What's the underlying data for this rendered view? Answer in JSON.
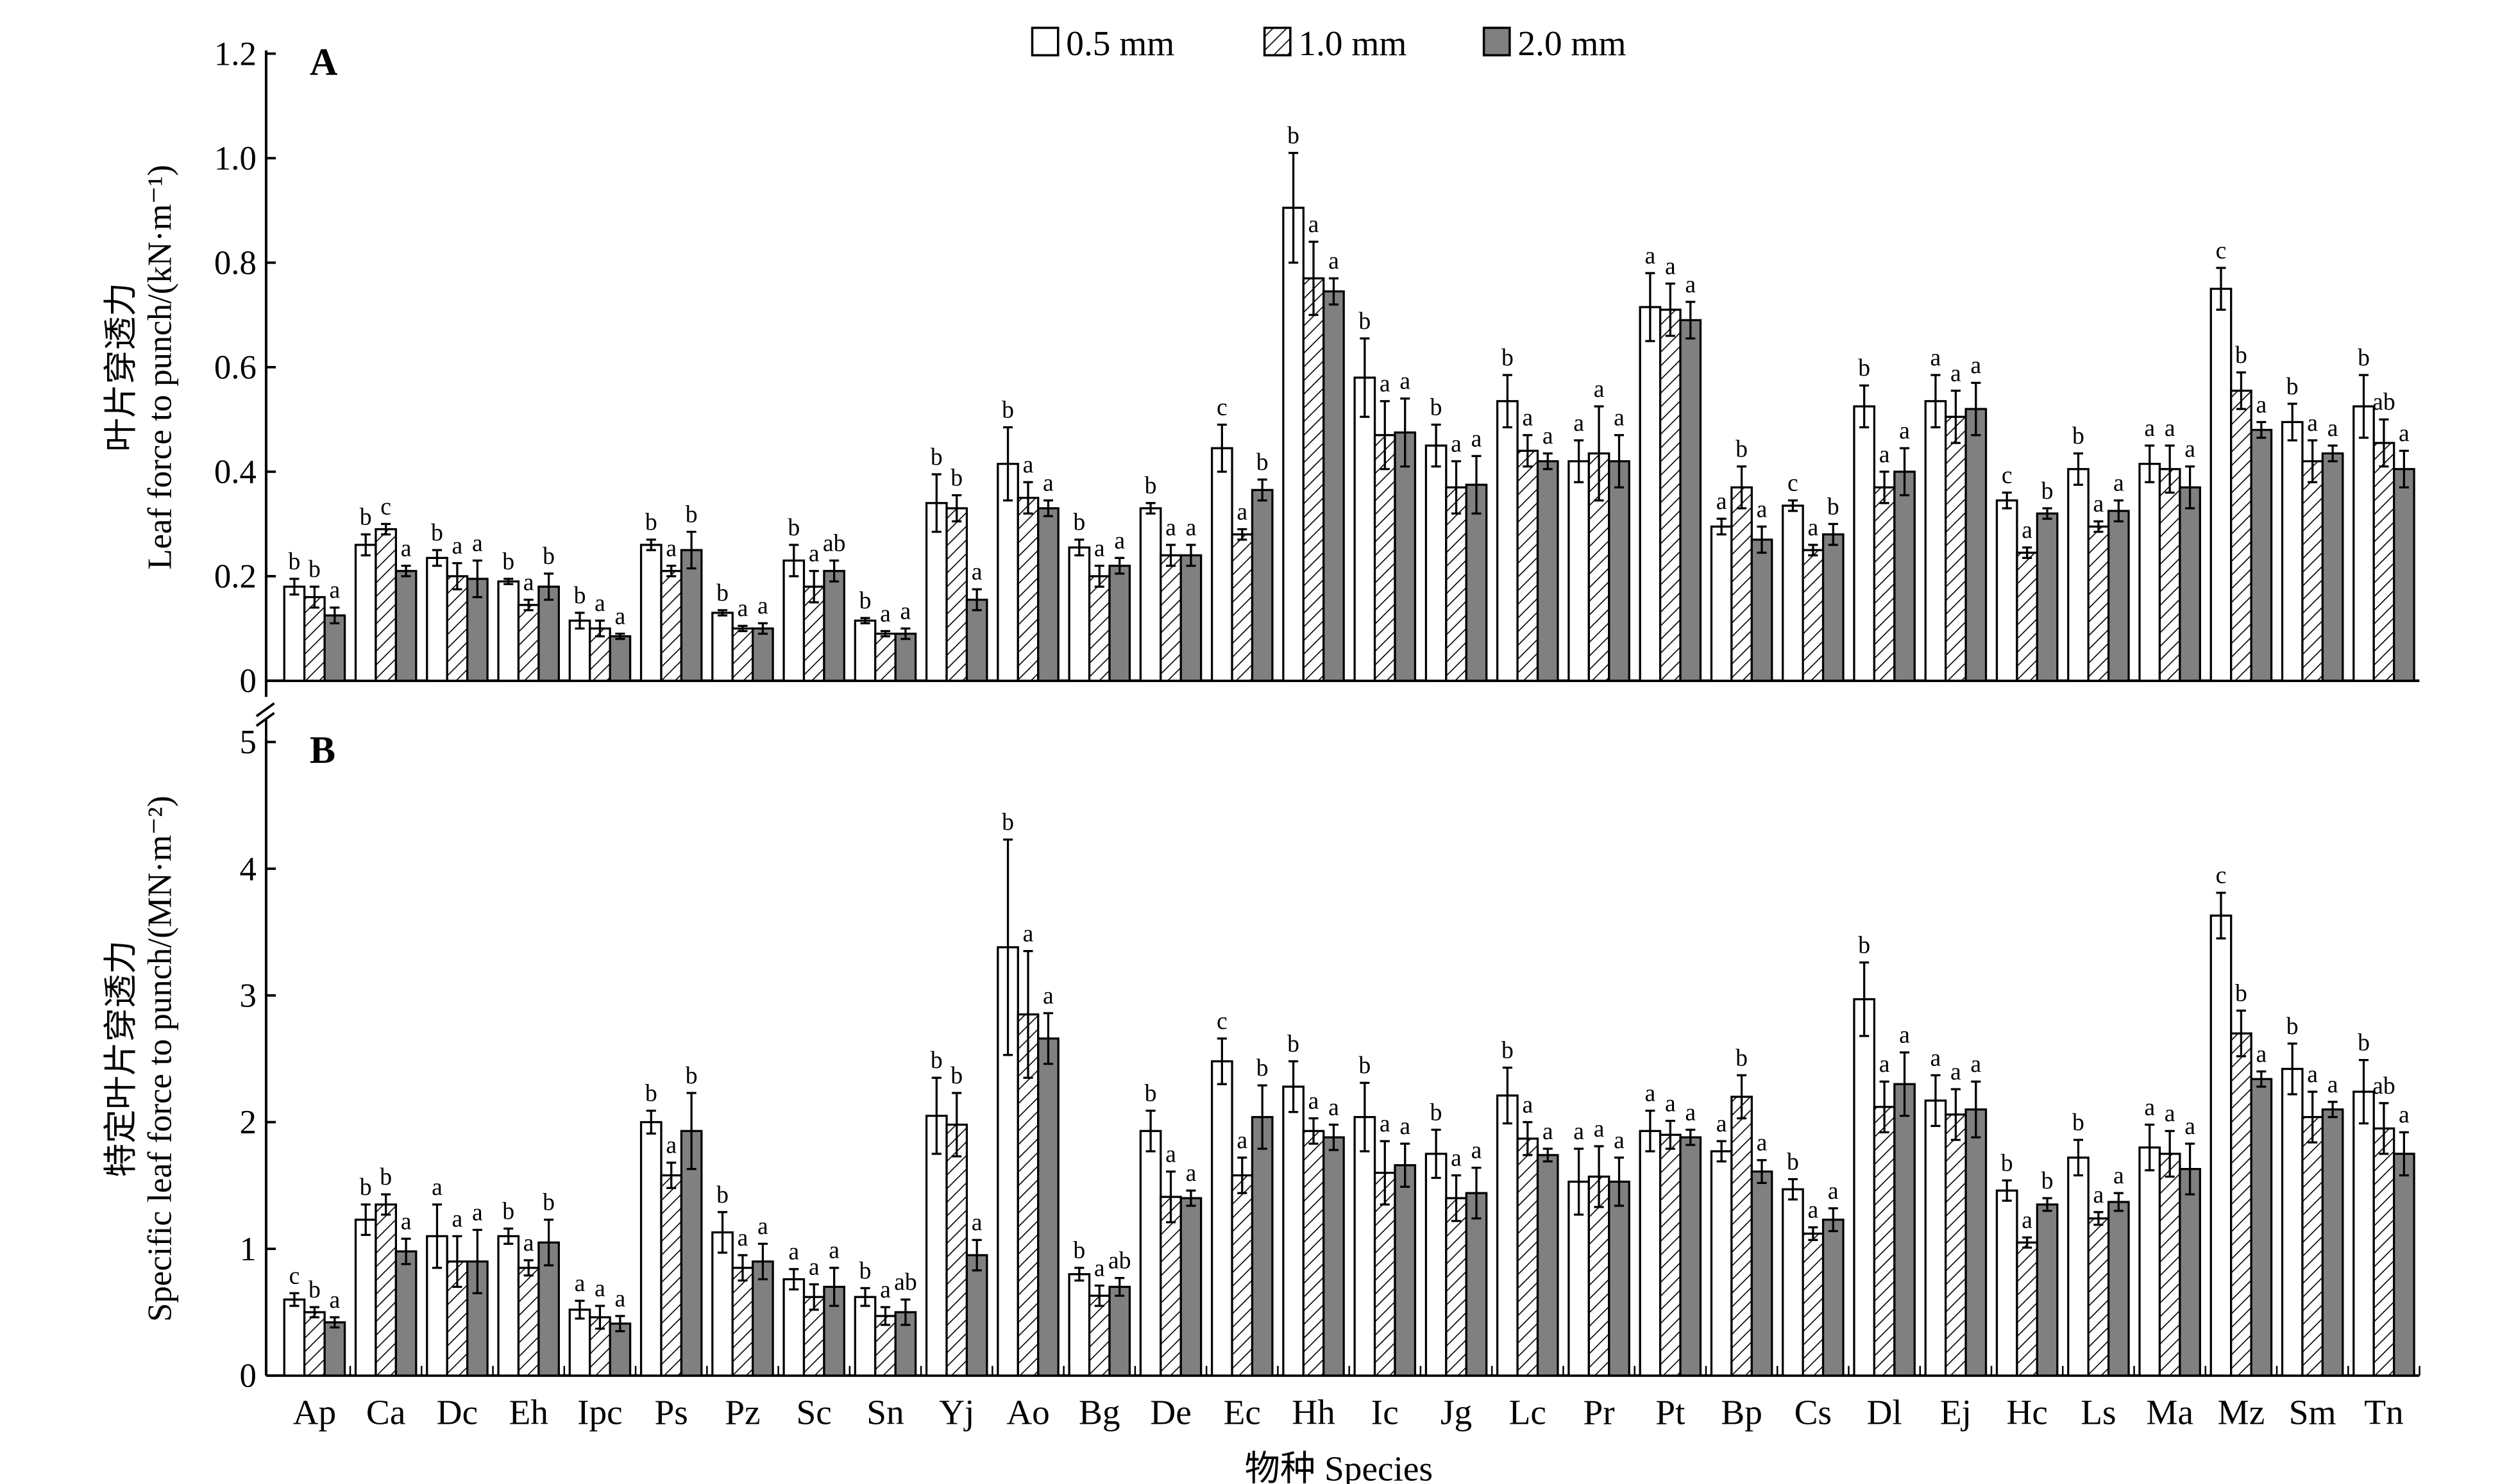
{
  "chart_data": {
    "type": "bar",
    "legend_placement": "top-center",
    "series_names": [
      "0.5 mm",
      "1.0 mm",
      "2.0 mm"
    ],
    "series_fills": [
      "#ffffff",
      "hatch",
      "#808080"
    ],
    "categories": [
      "Ap",
      "Ca",
      "Dc",
      "Eh",
      "Ipc",
      "Ps",
      "Pz",
      "Sc",
      "Sn",
      "Yj",
      "Ao",
      "Bg",
      "De",
      "Ec",
      "Hh",
      "Ic",
      "Jg",
      "Lc",
      "Pr",
      "Pt",
      "Bp",
      "Cs",
      "Dl",
      "Ej",
      "Hc",
      "Ls",
      "Ma",
      "Mz",
      "Sm",
      "Tn"
    ],
    "xlabel": "物种 Species",
    "panels": [
      {
        "label": "A",
        "ylabel_cn": "叶片穿透力",
        "ylabel_en": "Leaf force to punch/(kN·m⁻¹)",
        "ylim": [
          0,
          1.2
        ],
        "yticks": [
          "0",
          "0.2",
          "0.4",
          "0.6",
          "0.8",
          "1.0",
          "1.2"
        ],
        "series": [
          {
            "values": [
              0.18,
              0.26,
              0.235,
              0.19,
              0.115,
              0.26,
              0.13,
              0.23,
              0.115,
              0.34,
              0.415,
              0.255,
              0.33,
              0.445,
              0.905,
              0.58,
              0.45,
              0.535,
              0.42,
              0.715,
              0.295,
              0.335,
              0.525,
              0.535,
              0.345,
              0.405,
              0.415,
              0.75,
              0.495,
              0.525
            ],
            "errors": [
              0.015,
              0.02,
              0.015,
              0.005,
              0.015,
              0.01,
              0.005,
              0.03,
              0.005,
              0.055,
              0.07,
              0.015,
              0.01,
              0.045,
              0.105,
              0.075,
              0.04,
              0.05,
              0.04,
              0.065,
              0.015,
              0.01,
              0.04,
              0.05,
              0.015,
              0.03,
              0.035,
              0.04,
              0.035,
              0.06
            ],
            "letters": [
              "b",
              "b",
              "b",
              "b",
              "b",
              "b",
              "b",
              "b",
              "b",
              "b",
              "b",
              "b",
              "b",
              "c",
              "b",
              "b",
              "b",
              "b",
              "a",
              "a",
              "a",
              "c",
              "b",
              "a",
              "c",
              "b",
              "a",
              "c",
              "b",
              "b"
            ]
          },
          {
            "values": [
              0.16,
              0.29,
              0.2,
              0.145,
              0.1,
              0.21,
              0.1,
              0.18,
              0.09,
              0.33,
              0.35,
              0.2,
              0.24,
              0.28,
              0.77,
              0.47,
              0.37,
              0.44,
              0.435,
              0.71,
              0.37,
              0.25,
              0.37,
              0.505,
              0.245,
              0.295,
              0.405,
              0.555,
              0.42,
              0.455
            ],
            "errors": [
              0.02,
              0.01,
              0.025,
              0.01,
              0.015,
              0.01,
              0.005,
              0.03,
              0.005,
              0.025,
              0.03,
              0.02,
              0.02,
              0.01,
              0.07,
              0.065,
              0.05,
              0.03,
              0.09,
              0.05,
              0.04,
              0.01,
              0.03,
              0.05,
              0.01,
              0.01,
              0.045,
              0.035,
              0.04,
              0.045
            ],
            "letters": [
              "b",
              "c",
              "a",
              "a",
              "a",
              "a",
              "a",
              "a",
              "a",
              "b",
              "a",
              "a",
              "a",
              "a",
              "a",
              "a",
              "a",
              "a",
              "a",
              "a",
              "b",
              "a",
              "a",
              "a",
              "a",
              "a",
              "a",
              "b",
              "a",
              "ab"
            ]
          },
          {
            "values": [
              0.125,
              0.21,
              0.195,
              0.18,
              0.085,
              0.25,
              0.1,
              0.21,
              0.09,
              0.155,
              0.33,
              0.22,
              0.24,
              0.365,
              0.745,
              0.475,
              0.375,
              0.42,
              0.42,
              0.69,
              0.27,
              0.28,
              0.4,
              0.52,
              0.32,
              0.325,
              0.37,
              0.48,
              0.435,
              0.405
            ],
            "errors": [
              0.015,
              0.01,
              0.035,
              0.025,
              0.005,
              0.035,
              0.01,
              0.02,
              0.01,
              0.02,
              0.015,
              0.015,
              0.02,
              0.02,
              0.025,
              0.065,
              0.055,
              0.015,
              0.05,
              0.035,
              0.025,
              0.02,
              0.045,
              0.05,
              0.01,
              0.02,
              0.04,
              0.015,
              0.015,
              0.035
            ],
            "letters": [
              "a",
              "a",
              "a",
              "b",
              "a",
              "b",
              "a",
              "ab",
              "a",
              "a",
              "a",
              "a",
              "a",
              "b",
              "a",
              "a",
              "a",
              "a",
              "a",
              "a",
              "a",
              "b",
              "a",
              "a",
              "b",
              "a",
              "a",
              "a",
              "a",
              "a"
            ]
          }
        ]
      },
      {
        "label": "B",
        "ylabel_cn": "特定叶片穿透力",
        "ylabel_en": "Specific leaf force to punch/(MN·m⁻²)",
        "ylim": [
          0,
          5
        ],
        "yticks": [
          "0",
          "1",
          "2",
          "3",
          "4",
          "5"
        ],
        "series": [
          {
            "values": [
              0.6,
              1.23,
              1.1,
              1.1,
              0.52,
              2.0,
              1.13,
              0.76,
              0.62,
              2.05,
              3.38,
              0.8,
              1.93,
              2.48,
              2.28,
              2.04,
              1.75,
              2.21,
              1.53,
              1.93,
              1.77,
              1.47,
              2.97,
              2.17,
              1.46,
              1.72,
              1.8,
              3.63,
              2.42,
              2.24
            ],
            "errors": [
              0.05,
              0.12,
              0.25,
              0.06,
              0.07,
              0.09,
              0.16,
              0.08,
              0.07,
              0.3,
              0.85,
              0.05,
              0.16,
              0.18,
              0.2,
              0.27,
              0.19,
              0.22,
              0.26,
              0.16,
              0.08,
              0.08,
              0.29,
              0.2,
              0.08,
              0.14,
              0.18,
              0.18,
              0.2,
              0.25
            ],
            "letters": [
              "c",
              "b",
              "a",
              "b",
              "a",
              "b",
              "b",
              "a",
              "b",
              "b",
              "b",
              "b",
              "b",
              "c",
              "b",
              "b",
              "b",
              "b",
              "a",
              "a",
              "a",
              "b",
              "b",
              "a",
              "b",
              "b",
              "a",
              "c",
              "b",
              "b"
            ]
          },
          {
            "values": [
              0.5,
              1.35,
              0.9,
              0.85,
              0.46,
              1.58,
              0.85,
              0.62,
              0.47,
              1.98,
              2.85,
              0.63,
              1.41,
              1.58,
              1.93,
              1.6,
              1.4,
              1.87,
              1.57,
              1.9,
              2.2,
              1.12,
              2.12,
              2.06,
              1.05,
              1.24,
              1.75,
              2.7,
              2.04,
              1.95
            ],
            "errors": [
              0.04,
              0.08,
              0.2,
              0.06,
              0.09,
              0.1,
              0.1,
              0.1,
              0.07,
              0.25,
              0.5,
              0.08,
              0.2,
              0.14,
              0.1,
              0.25,
              0.18,
              0.13,
              0.24,
              0.11,
              0.17,
              0.05,
              0.2,
              0.2,
              0.04,
              0.05,
              0.18,
              0.18,
              0.2,
              0.2
            ],
            "letters": [
              "b",
              "b",
              "a",
              "a",
              "a",
              "a",
              "a",
              "a",
              "a",
              "b",
              "a",
              "a",
              "a",
              "a",
              "a",
              "a",
              "a",
              "a",
              "a",
              "a",
              "b",
              "a",
              "a",
              "a",
              "a",
              "a",
              "a",
              "b",
              "a",
              "ab"
            ]
          },
          {
            "values": [
              0.42,
              0.98,
              0.9,
              1.05,
              0.41,
              1.93,
              0.9,
              0.7,
              0.5,
              0.95,
              2.66,
              0.7,
              1.4,
              2.04,
              1.88,
              1.66,
              1.44,
              1.74,
              1.53,
              1.88,
              1.61,
              1.23,
              2.3,
              2.1,
              1.35,
              1.37,
              1.63,
              2.34,
              2.1,
              1.75
            ],
            "errors": [
              0.04,
              0.1,
              0.25,
              0.18,
              0.06,
              0.3,
              0.14,
              0.15,
              0.1,
              0.12,
              0.2,
              0.07,
              0.06,
              0.25,
              0.1,
              0.17,
              0.2,
              0.05,
              0.19,
              0.06,
              0.09,
              0.09,
              0.25,
              0.22,
              0.05,
              0.07,
              0.2,
              0.06,
              0.06,
              0.17
            ],
            "letters": [
              "a",
              "a",
              "a",
              "b",
              "a",
              "b",
              "a",
              "a",
              "ab",
              "a",
              "a",
              "ab",
              "a",
              "b",
              "a",
              "a",
              "a",
              "a",
              "a",
              "a",
              "a",
              "a",
              "a",
              "a",
              "b",
              "a",
              "a",
              "a",
              "a",
              "a"
            ]
          }
        ]
      }
    ]
  }
}
